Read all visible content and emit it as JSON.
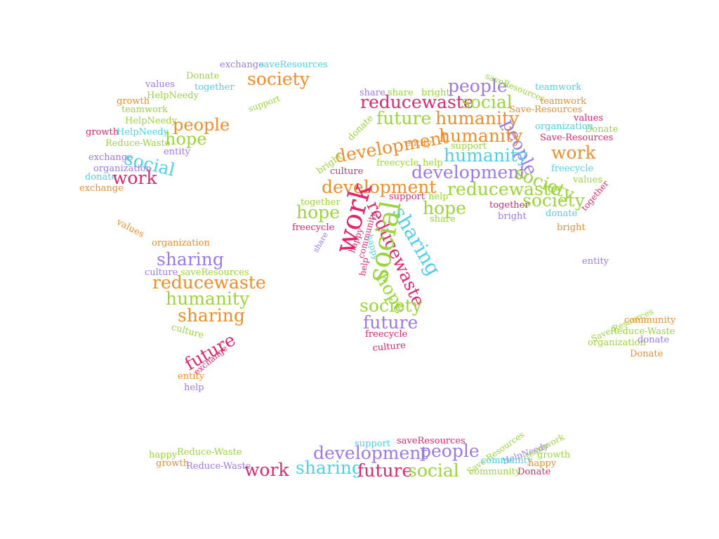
{
  "colors": {
    "orange": "#f28c28",
    "purple": "#9b79ea",
    "cyan": "#4fd0e6",
    "green": "#9ad53a",
    "pink": "#e2266a"
  },
  "words": [
    {
      "text": "exchange",
      "color": "purple"
    },
    {
      "text": "saveResources",
      "color": "cyan"
    },
    {
      "text": "Donate",
      "color": "green"
    },
    {
      "text": "society",
      "color": "orange"
    },
    {
      "text": "values",
      "color": "purple"
    },
    {
      "text": "together",
      "color": "cyan"
    },
    {
      "text": "HelpNeedy",
      "color": "green"
    },
    {
      "text": "support",
      "color": "green"
    },
    {
      "text": "growth",
      "color": "orange"
    },
    {
      "text": "teamwork",
      "color": "green"
    },
    {
      "text": "HelpNeedy",
      "color": "green"
    },
    {
      "text": "people",
      "color": "orange"
    },
    {
      "text": "growth",
      "color": "pink"
    },
    {
      "text": "HelpNeedy",
      "color": "cyan"
    },
    {
      "text": "hope",
      "color": "green"
    },
    {
      "text": "Reduce-Waste",
      "color": "green"
    },
    {
      "text": "entity",
      "color": "purple"
    },
    {
      "text": "exchange",
      "color": "purple"
    },
    {
      "text": "social",
      "color": "cyan"
    },
    {
      "text": "organization",
      "color": "purple"
    },
    {
      "text": "donate",
      "color": "cyan"
    },
    {
      "text": "work",
      "color": "pink"
    },
    {
      "text": "exchange",
      "color": "orange"
    },
    {
      "text": "values",
      "color": "orange"
    },
    {
      "text": "organization",
      "color": "orange"
    },
    {
      "text": "sharing",
      "color": "purple"
    },
    {
      "text": "culture",
      "color": "purple"
    },
    {
      "text": "saveResources",
      "color": "green"
    },
    {
      "text": "reducewaste",
      "color": "orange"
    },
    {
      "text": "humanity",
      "color": "green"
    },
    {
      "text": "sharing",
      "color": "orange"
    },
    {
      "text": "culture",
      "color": "green"
    },
    {
      "text": "future",
      "color": "pink"
    },
    {
      "text": "exchange",
      "color": "pink"
    },
    {
      "text": "entity",
      "color": "orange"
    },
    {
      "text": "help",
      "color": "purple"
    },
    {
      "text": "share",
      "color": "purple"
    },
    {
      "text": "share",
      "color": "green"
    },
    {
      "text": "bright",
      "color": "green"
    },
    {
      "text": "people",
      "color": "purple"
    },
    {
      "text": "saveResources",
      "color": "green"
    },
    {
      "text": "teamwork",
      "color": "cyan"
    },
    {
      "text": "reducewaste",
      "color": "pink"
    },
    {
      "text": "social",
      "color": "green"
    },
    {
      "text": "teamwork",
      "color": "orange"
    },
    {
      "text": "Save-Resources",
      "color": "orange"
    },
    {
      "text": "donate",
      "color": "green"
    },
    {
      "text": "future",
      "color": "green"
    },
    {
      "text": "humanity",
      "color": "orange"
    },
    {
      "text": "values",
      "color": "pink"
    },
    {
      "text": "people",
      "color": "purple"
    },
    {
      "text": "organization",
      "color": "cyan"
    },
    {
      "text": "Donate",
      "color": "green"
    },
    {
      "text": "development",
      "color": "orange"
    },
    {
      "text": "humanity",
      "color": "orange"
    },
    {
      "text": "Save-Resources",
      "color": "pink"
    },
    {
      "text": "entity",
      "color": "orange"
    },
    {
      "text": "support",
      "color": "green"
    },
    {
      "text": "work",
      "color": "orange"
    },
    {
      "text": "bright",
      "color": "green"
    },
    {
      "text": "humanity",
      "color": "cyan"
    },
    {
      "text": "freecycle",
      "color": "green"
    },
    {
      "text": "help",
      "color": "green"
    },
    {
      "text": "culture",
      "color": "pink"
    },
    {
      "text": "development",
      "color": "purple"
    },
    {
      "text": "society",
      "color": "green"
    },
    {
      "text": "freecycle",
      "color": "cyan"
    },
    {
      "text": "values",
      "color": "green"
    },
    {
      "text": "development",
      "color": "orange"
    },
    {
      "text": "reducewaste",
      "color": "green"
    },
    {
      "text": "together",
      "color": "pink"
    },
    {
      "text": "support",
      "color": "pink"
    },
    {
      "text": "help",
      "color": "green"
    },
    {
      "text": "society",
      "color": "green"
    },
    {
      "text": "together",
      "color": "green"
    },
    {
      "text": "hope",
      "color": "green"
    },
    {
      "text": "work",
      "color": "pink"
    },
    {
      "text": "reducewaste",
      "color": "pink"
    },
    {
      "text": "sharing",
      "color": "cyan"
    },
    {
      "text": "hope",
      "color": "green"
    },
    {
      "text": "together",
      "color": "pink"
    },
    {
      "text": "donate",
      "color": "cyan"
    },
    {
      "text": "bright",
      "color": "purple"
    },
    {
      "text": "share",
      "color": "green"
    },
    {
      "text": "bright",
      "color": "orange"
    },
    {
      "text": "freecycle",
      "color": "pink"
    },
    {
      "text": "share",
      "color": "purple"
    },
    {
      "text": "happy",
      "color": "pink"
    },
    {
      "text": "community",
      "color": "pink"
    },
    {
      "text": "happy",
      "color": "cyan"
    },
    {
      "text": "help",
      "color": "pink"
    },
    {
      "text": "social",
      "color": "green"
    },
    {
      "text": "hope",
      "color": "green"
    },
    {
      "text": "society",
      "color": "green"
    },
    {
      "text": "future",
      "color": "purple"
    },
    {
      "text": "freecycle",
      "color": "pink"
    },
    {
      "text": "culture",
      "color": "pink"
    },
    {
      "text": "entity",
      "color": "purple"
    },
    {
      "text": "Save-Resources",
      "color": "green"
    },
    {
      "text": "community",
      "color": "orange"
    },
    {
      "text": "Reduce-Waste",
      "color": "green"
    },
    {
      "text": "organization",
      "color": "green"
    },
    {
      "text": "donate",
      "color": "purple"
    },
    {
      "text": "Donate",
      "color": "orange"
    },
    {
      "text": "support",
      "color": "cyan"
    },
    {
      "text": "saveResources",
      "color": "pink"
    },
    {
      "text": "people",
      "color": "purple"
    },
    {
      "text": "development",
      "color": "purple"
    },
    {
      "text": "Save-Resources",
      "color": "green"
    },
    {
      "text": "HelpNeedy",
      "color": "purple"
    },
    {
      "text": "teamwork",
      "color": "green"
    },
    {
      "text": "growth",
      "color": "green"
    },
    {
      "text": "happy",
      "color": "green"
    },
    {
      "text": "Reduce-Waste",
      "color": "green"
    },
    {
      "text": "growth",
      "color": "orange"
    },
    {
      "text": "Reduce-Waste",
      "color": "purple"
    },
    {
      "text": "work",
      "color": "pink"
    },
    {
      "text": "sharing",
      "color": "cyan"
    },
    {
      "text": "future",
      "color": "pink"
    },
    {
      "text": "social",
      "color": "green"
    },
    {
      "text": "community",
      "color": "cyan"
    },
    {
      "text": "happy",
      "color": "orange"
    },
    {
      "text": "community",
      "color": "green"
    },
    {
      "text": "Donate",
      "color": "pink"
    }
  ]
}
